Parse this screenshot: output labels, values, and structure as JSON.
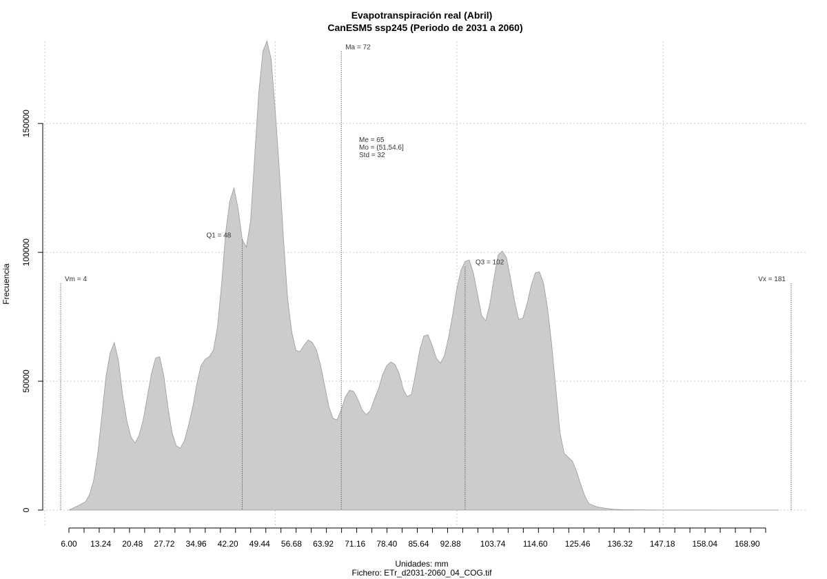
{
  "chart_data": {
    "type": "area",
    "title": "Evapotranspiración real (Abril)",
    "subtitle": "CanESM5 ssp245 (Periodo de 2031 a 2060)",
    "xlabel": "Unidades: mm",
    "ylabel": "Frecuencia",
    "caption": "Fichero: ETr_d2031-2060_04_COG.tif",
    "xlim": [
      4,
      181
    ],
    "ylim": [
      0,
      180000
    ],
    "x_tick_labels": [
      "6.00",
      "13.24",
      "20.48",
      "27.72",
      "34.96",
      "42.20",
      "49.44",
      "56.68",
      "63.92",
      "71.16",
      "78.40",
      "85.64",
      "92.88",
      "103.74",
      "114.60",
      "125.46",
      "136.32",
      "147.18",
      "158.04",
      "168.90"
    ],
    "y_tick_labels": [
      "0",
      "50000",
      "100000",
      "150000"
    ],
    "y_ticks": [
      0,
      50000,
      100000,
      150000
    ],
    "grid": true,
    "fill_color": "#cccccc",
    "line_color": "#999999",
    "series": [
      {
        "x": [
          6,
          8,
          10,
          11,
          12,
          13,
          14,
          15,
          16,
          17,
          18,
          19,
          20,
          21,
          22,
          23,
          24,
          25,
          26,
          27,
          28,
          29,
          30,
          31,
          32,
          33,
          34,
          35,
          36,
          37,
          38,
          39,
          40,
          41,
          42,
          43,
          44,
          45,
          46,
          47,
          48,
          49,
          50,
          51,
          52,
          53,
          54,
          55,
          56,
          57,
          58,
          59,
          60,
          61,
          62,
          63,
          64,
          65,
          66,
          67,
          68,
          69,
          70,
          71,
          72,
          73,
          74,
          75,
          76,
          77,
          78,
          79,
          80,
          81,
          82,
          83,
          84,
          85,
          86,
          87,
          88,
          89,
          90,
          91,
          92,
          93,
          94,
          95,
          96,
          97,
          98,
          99,
          100,
          101,
          102,
          103,
          104,
          105,
          106,
          107,
          108,
          109,
          110,
          111,
          112,
          113,
          114,
          115,
          116,
          117,
          118,
          119,
          120,
          121,
          122,
          123,
          124,
          125,
          126,
          127,
          128,
          129,
          130,
          131,
          132,
          134,
          136,
          138,
          140,
          144,
          150,
          160,
          170,
          178
        ],
        "y": [
          0,
          1500,
          3200,
          6000,
          11500,
          22000,
          37000,
          52000,
          61000,
          65000,
          58000,
          45000,
          35000,
          28500,
          26000,
          29000,
          35000,
          44000,
          53000,
          59000,
          59500,
          52000,
          40000,
          30000,
          25000,
          24000,
          27000,
          33000,
          40000,
          49000,
          56000,
          58500,
          59500,
          62000,
          71000,
          88000,
          108000,
          120000,
          125000,
          117000,
          105000,
          102000,
          112000,
          137000,
          162000,
          178000,
          182000,
          175000,
          155000,
          132000,
          105000,
          82000,
          69000,
          62000,
          61500,
          64000,
          66000,
          65000,
          62000,
          56000,
          48000,
          40000,
          35500,
          35000,
          39000,
          44000,
          46500,
          46000,
          43000,
          39000,
          37000,
          38500,
          43000,
          47000,
          52500,
          56000,
          57500,
          56500,
          53000,
          47000,
          44000,
          45000,
          53000,
          62000,
          67500,
          68000,
          64000,
          59000,
          57000,
          60000,
          67000,
          76000,
          86000,
          93000,
          96500,
          97000,
          92000,
          84000,
          75500,
          73500,
          80000,
          90000,
          99000,
          100500,
          98000,
          90000,
          81000,
          74000,
          74500,
          80000,
          87000,
          92000,
          92500,
          88000,
          78000,
          64000,
          47000,
          30000,
          22000,
          20500,
          19000,
          15000,
          10000,
          5500,
          2500,
          1200,
          700,
          300,
          150,
          80,
          40,
          20,
          10,
          0
        ]
      }
    ],
    "annotations": {
      "vm": {
        "value": 4,
        "label": "Vm = 4"
      },
      "q1": {
        "value": 48,
        "label": "Q1 = 48"
      },
      "ma": {
        "value": 72,
        "label": "Ma = 72"
      },
      "q3": {
        "value": 102,
        "label": "Q3 = 102"
      },
      "vx": {
        "value": 181,
        "label": "Vx = 181"
      },
      "stats": [
        "Me = 65",
        "Mo = (51,54.6]",
        "Std = 32"
      ]
    }
  }
}
